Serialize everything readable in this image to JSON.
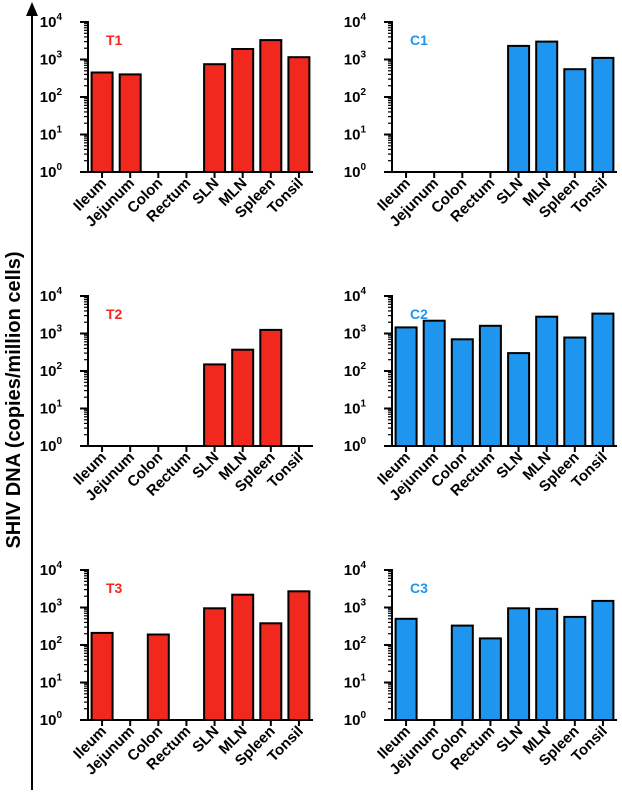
{
  "ylabel": "SHIV DNA (copies/million cells)",
  "colors": {
    "treated": "#f0281e",
    "control": "#1e96f0",
    "axis": "#000000"
  },
  "chart_data": [
    {
      "type": "bar",
      "title": "T1",
      "color": "#f0281e",
      "categories": [
        "Ileum",
        "Jejunum",
        "Colon",
        "Rectum",
        "SLN",
        "MLN",
        "Spleen",
        "Tonsil"
      ],
      "values": [
        450,
        400,
        null,
        null,
        750,
        1900,
        3300,
        1150
      ],
      "yscale": "log",
      "ylim": [
        1,
        10000
      ],
      "yticks": [
        "10^0",
        "10^1",
        "10^2",
        "10^3",
        "10^4"
      ]
    },
    {
      "type": "bar",
      "title": "C1",
      "color": "#1e96f0",
      "categories": [
        "Ileum",
        "Jejunum",
        "Colon",
        "Rectum",
        "SLN",
        "MLN",
        "Spleen",
        "Tonsil"
      ],
      "values": [
        null,
        null,
        null,
        null,
        2300,
        3000,
        550,
        1100
      ],
      "yscale": "log",
      "ylim": [
        1,
        10000
      ],
      "yticks": [
        "10^0",
        "10^1",
        "10^2",
        "10^3",
        "10^4"
      ]
    },
    {
      "type": "bar",
      "title": "T2",
      "color": "#f0281e",
      "categories": [
        "Ileum",
        "Jejunum",
        "Colon",
        "Rectum",
        "SLN",
        "MLN",
        "Spleen",
        "Tonsil"
      ],
      "values": [
        null,
        null,
        null,
        null,
        150,
        370,
        1250,
        null
      ],
      "yscale": "log",
      "ylim": [
        1,
        10000
      ],
      "yticks": [
        "10^0",
        "10^1",
        "10^2",
        "10^3",
        "10^4"
      ]
    },
    {
      "type": "bar",
      "title": "C2",
      "color": "#1e96f0",
      "categories": [
        "Ileum",
        "Jejunum",
        "Colon",
        "Rectum",
        "SLN",
        "MLN",
        "Spleen",
        "Tonsil"
      ],
      "values": [
        1450,
        2200,
        700,
        1600,
        300,
        2800,
        780,
        3400
      ],
      "yscale": "log",
      "ylim": [
        1,
        10000
      ],
      "yticks": [
        "10^0",
        "10^1",
        "10^2",
        "10^3",
        "10^4"
      ]
    },
    {
      "type": "bar",
      "title": "T3",
      "color": "#f0281e",
      "categories": [
        "Ileum",
        "Jejunum",
        "Colon",
        "Rectum",
        "SLN",
        "MLN",
        "Spleen",
        "Tonsil"
      ],
      "values": [
        210,
        null,
        190,
        null,
        950,
        2200,
        380,
        2700
      ],
      "yscale": "log",
      "ylim": [
        1,
        10000
      ],
      "yticks": [
        "10^0",
        "10^1",
        "10^2",
        "10^3",
        "10^4"
      ]
    },
    {
      "type": "bar",
      "title": "C3",
      "color": "#1e96f0",
      "categories": [
        "Ileum",
        "Jejunum",
        "Colon",
        "Rectum",
        "SLN",
        "MLN",
        "Spleen",
        "Tonsil"
      ],
      "values": [
        500,
        null,
        330,
        150,
        950,
        920,
        560,
        1500
      ],
      "yscale": "log",
      "ylim": [
        1,
        10000
      ],
      "yticks": [
        "10^0",
        "10^1",
        "10^2",
        "10^3",
        "10^4"
      ]
    }
  ]
}
